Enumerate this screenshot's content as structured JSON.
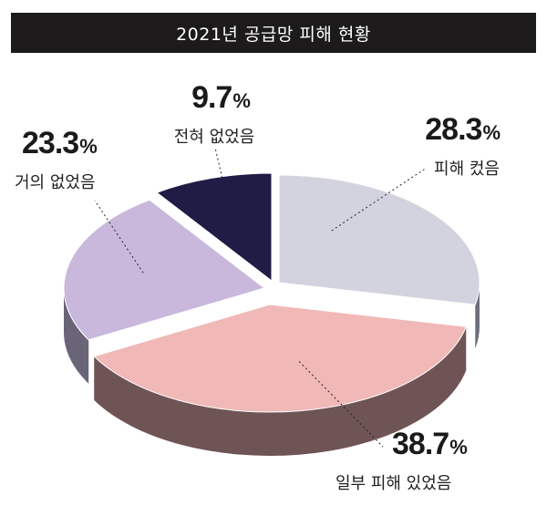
{
  "title": "2021년 공급망 피해 현황",
  "chart_data": {
    "type": "pie",
    "title": "2021년 공급망 피해 현황",
    "unit": "%",
    "slices": [
      {
        "label": "피해 컸음",
        "value": 28.3,
        "display": "28.3",
        "color": "#d3d3df",
        "side": "#6f6e7c"
      },
      {
        "label": "일부 피해 있었음",
        "value": 38.7,
        "display": "38.7",
        "color": "#f0b8b6",
        "side": "#6f5456"
      },
      {
        "label": "거의 없었음",
        "value": 23.3,
        "display": "23.3",
        "color": "#c9b8dc",
        "side": "#6a6478"
      },
      {
        "label": "전혀 없었음",
        "value": 9.7,
        "display": "9.7",
        "color": "#1f1c45",
        "side": "#15132c"
      }
    ]
  }
}
